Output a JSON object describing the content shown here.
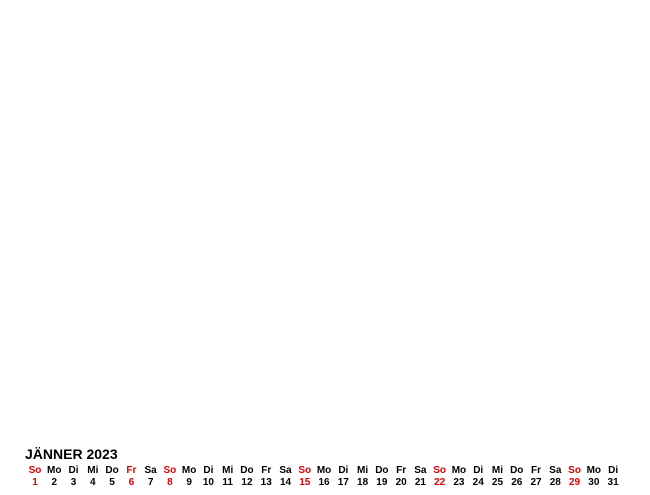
{
  "month_title": "JÄNNER 2023",
  "colors": {
    "holiday": "#e00000",
    "normal": "#000000"
  },
  "days": [
    {
      "wd": "So",
      "num": "1",
      "red": true
    },
    {
      "wd": "Mo",
      "num": "2",
      "red": false
    },
    {
      "wd": "Di",
      "num": "3",
      "red": false
    },
    {
      "wd": "Mi",
      "num": "4",
      "red": false
    },
    {
      "wd": "Do",
      "num": "5",
      "red": false
    },
    {
      "wd": "Fr",
      "num": "6",
      "red": true
    },
    {
      "wd": "Sa",
      "num": "7",
      "red": false
    },
    {
      "wd": "So",
      "num": "8",
      "red": true
    },
    {
      "wd": "Mo",
      "num": "9",
      "red": false
    },
    {
      "wd": "Di",
      "num": "10",
      "red": false
    },
    {
      "wd": "Mi",
      "num": "11",
      "red": false
    },
    {
      "wd": "Do",
      "num": "12",
      "red": false
    },
    {
      "wd": "Fr",
      "num": "13",
      "red": false
    },
    {
      "wd": "Sa",
      "num": "14",
      "red": false
    },
    {
      "wd": "So",
      "num": "15",
      "red": true
    },
    {
      "wd": "Mo",
      "num": "16",
      "red": false
    },
    {
      "wd": "Di",
      "num": "17",
      "red": false
    },
    {
      "wd": "Mi",
      "num": "18",
      "red": false
    },
    {
      "wd": "Do",
      "num": "19",
      "red": false
    },
    {
      "wd": "Fr",
      "num": "20",
      "red": false
    },
    {
      "wd": "Sa",
      "num": "21",
      "red": false
    },
    {
      "wd": "So",
      "num": "22",
      "red": true
    },
    {
      "wd": "Mo",
      "num": "23",
      "red": false
    },
    {
      "wd": "Di",
      "num": "24",
      "red": false
    },
    {
      "wd": "Mi",
      "num": "25",
      "red": false
    },
    {
      "wd": "Do",
      "num": "26",
      "red": false
    },
    {
      "wd": "Fr",
      "num": "27",
      "red": false
    },
    {
      "wd": "Sa",
      "num": "28",
      "red": false
    },
    {
      "wd": "So",
      "num": "29",
      "red": true
    },
    {
      "wd": "Mo",
      "num": "30",
      "red": false
    },
    {
      "wd": "Di",
      "num": "31",
      "red": false
    }
  ]
}
